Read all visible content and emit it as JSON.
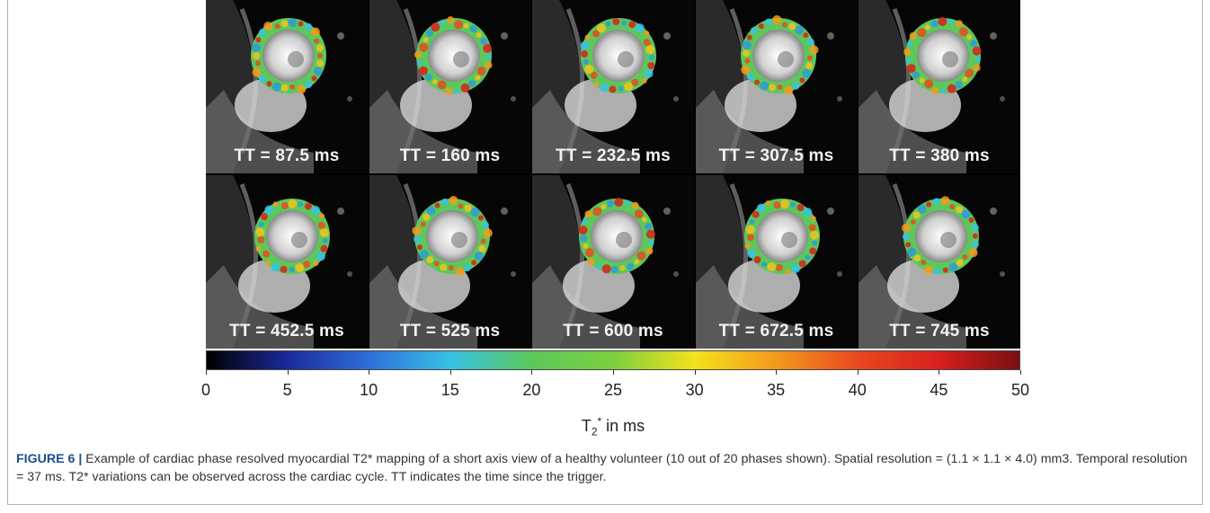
{
  "panels": [
    {
      "label": "TT = 87.5 ms"
    },
    {
      "label": "TT = 160 ms"
    },
    {
      "label": "TT = 232.5 ms"
    },
    {
      "label": "TT = 307.5 ms"
    },
    {
      "label": "TT = 380 ms"
    },
    {
      "label": "TT = 452.5 ms"
    },
    {
      "label": "TT = 525 ms"
    },
    {
      "label": "TT = 600 ms"
    },
    {
      "label": "TT = 672.5 ms"
    },
    {
      "label": "TT = 745 ms"
    }
  ],
  "colorbar": {
    "range": [
      0,
      50
    ],
    "ticks": [
      "0",
      "5",
      "10",
      "15",
      "20",
      "25",
      "30",
      "35",
      "40",
      "45",
      "50"
    ],
    "label": "T2* in ms",
    "colors": [
      "#000000",
      "#1a2a9c",
      "#2f6fd8",
      "#37c2e6",
      "#5cc85a",
      "#7ccf3e",
      "#f3e21c",
      "#f39a1c",
      "#e8481e",
      "#d8201e",
      "#7a0e12"
    ]
  },
  "caption": {
    "figure_label": "FIGURE 6 |",
    "text": "Example of cardiac phase resolved myocardial T2* mapping of a short axis view of a healthy volunteer (10 out of 20 phases shown). Spatial resolution = (1.1 × 1.1 × 4.0) mm3. Temporal resolution = 37 ms. T2* variations can be observed across the cardiac cycle. TT indicates the time since the trigger."
  }
}
